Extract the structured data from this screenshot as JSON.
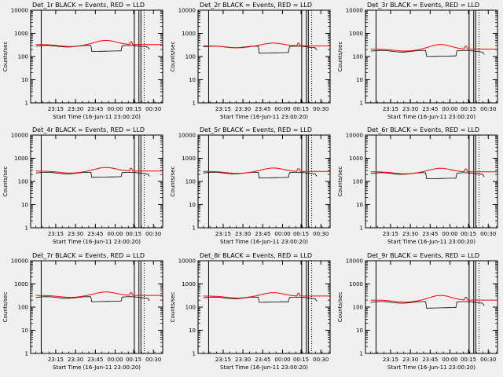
{
  "figure": {
    "background": "#f0f0f0",
    "axis_color": "#000000",
    "events_color": "#000000",
    "lld_color": "#ff0000"
  },
  "chart_data": [
    {
      "type": "line",
      "title": "Det_1r BLACK = Events, RED = LLD",
      "ylabel": "Counts/sec",
      "xlabel": "Start Time (16-Jun-11 23:00:20)",
      "xticks": [
        "23:15",
        "23:30",
        "23:45",
        "00:00",
        "00:15",
        "00:30"
      ],
      "yticks": [
        "1",
        "10",
        "100",
        "1000",
        "10000"
      ],
      "yscale": "log",
      "ylim": [
        1,
        10000
      ],
      "series": [
        {
          "name": "Events",
          "color": "#000000",
          "level": 280,
          "gap_level": 165
        },
        {
          "name": "LLD",
          "color": "#ff0000",
          "level": 330,
          "bump": 500
        }
      ]
    },
    {
      "type": "line",
      "title": "Det_2r BLACK = Events, RED = LLD",
      "ylabel": "Counts/sec",
      "xlabel": "Start Time (16-Jun-11 23:00:20)",
      "xticks": [
        "23:15",
        "23:30",
        "23:45",
        "00:00",
        "00:15",
        "00:30"
      ],
      "yticks": [
        "1",
        "10",
        "100",
        "1000",
        "10000"
      ],
      "yscale": "log",
      "ylim": [
        1,
        10000
      ],
      "series": [
        {
          "name": "Events",
          "color": "#000000",
          "level": 260,
          "gap_level": 140
        },
        {
          "name": "LLD",
          "color": "#ff0000",
          "level": 290,
          "bump": 380
        }
      ]
    },
    {
      "type": "line",
      "title": "Det_3r BLACK = Events, RED = LLD",
      "ylabel": "Counts/sec",
      "xlabel": "Start Time (16-Jun-11 23:00:20)",
      "xticks": [
        "23:15",
        "23:30",
        "23:45",
        "00:00",
        "00:15",
        "00:30"
      ],
      "yticks": [
        "1",
        "10",
        "100",
        "1000",
        "10000"
      ],
      "yscale": "log",
      "ylim": [
        1,
        10000
      ],
      "series": [
        {
          "name": "Events",
          "color": "#000000",
          "level": 170,
          "gap_level": 100
        },
        {
          "name": "LLD",
          "color": "#ff0000",
          "level": 210,
          "bump": 330
        }
      ]
    },
    {
      "type": "line",
      "title": "Det_4r BLACK = Events, RED = LLD",
      "ylabel": "Counts/sec",
      "xlabel": "Start Time (16-Jun-11 23:00:20)",
      "xticks": [
        "23:15",
        "23:30",
        "23:45",
        "00:00",
        "00:15",
        "00:30"
      ],
      "yticks": [
        "1",
        "10",
        "100",
        "1000",
        "10000"
      ],
      "yscale": "log",
      "ylim": [
        1,
        10000
      ],
      "series": [
        {
          "name": "Events",
          "color": "#000000",
          "level": 230,
          "gap_level": 150
        },
        {
          "name": "LLD",
          "color": "#ff0000",
          "level": 280,
          "bump": 400
        }
      ]
    },
    {
      "type": "line",
      "title": "Det_5r BLACK = Events, RED = LLD",
      "ylabel": "Counts/sec",
      "xlabel": "Start Time (16-Jun-11 23:00:20)",
      "xticks": [
        "23:15",
        "23:30",
        "23:45",
        "00:00",
        "00:15",
        "00:30"
      ],
      "yticks": [
        "1",
        "10",
        "100",
        "1000",
        "10000"
      ],
      "yscale": "log",
      "ylim": [
        1,
        10000
      ],
      "series": [
        {
          "name": "Events",
          "color": "#000000",
          "level": 230,
          "gap_level": 140
        },
        {
          "name": "LLD",
          "color": "#ff0000",
          "level": 270,
          "bump": 380
        }
      ]
    },
    {
      "type": "line",
      "title": "Det_6r BLACK = Events, RED = LLD",
      "ylabel": "Counts/sec",
      "xlabel": "Start Time (16-Jun-11 23:00:20)",
      "xticks": [
        "23:15",
        "23:30",
        "23:45",
        "00:00",
        "00:15",
        "00:30"
      ],
      "yticks": [
        "1",
        "10",
        "100",
        "1000",
        "10000"
      ],
      "yscale": "log",
      "ylim": [
        1,
        10000
      ],
      "series": [
        {
          "name": "Events",
          "color": "#000000",
          "level": 220,
          "gap_level": 130
        },
        {
          "name": "LLD",
          "color": "#ff0000",
          "level": 260,
          "bump": 370
        }
      ]
    },
    {
      "type": "line",
      "title": "Det_7r BLACK = Events, RED = LLD",
      "ylabel": "Counts/sec",
      "xlabel": "Start Time (16-Jun-11 23:00:20)",
      "xticks": [
        "23:15",
        "23:30",
        "23:45",
        "00:00",
        "00:15",
        "00:30"
      ],
      "yticks": [
        "1",
        "10",
        "100",
        "1000",
        "10000"
      ],
      "yscale": "log",
      "ylim": [
        1,
        10000
      ],
      "series": [
        {
          "name": "Events",
          "color": "#000000",
          "level": 260,
          "gap_level": 170
        },
        {
          "name": "LLD",
          "color": "#ff0000",
          "level": 320,
          "bump": 450
        }
      ]
    },
    {
      "type": "line",
      "title": "Det_8r BLACK = Events, RED = LLD",
      "ylabel": "Counts/sec",
      "xlabel": "Start Time (16-Jun-11 23:00:20)",
      "xticks": [
        "23:15",
        "23:30",
        "23:45",
        "00:00",
        "00:15",
        "00:30"
      ],
      "yticks": [
        "1",
        "10",
        "100",
        "1000",
        "10000"
      ],
      "yscale": "log",
      "ylim": [
        1,
        10000
      ],
      "series": [
        {
          "name": "Events",
          "color": "#000000",
          "level": 250,
          "gap_level": 160
        },
        {
          "name": "LLD",
          "color": "#ff0000",
          "level": 300,
          "bump": 420
        }
      ]
    },
    {
      "type": "line",
      "title": "Det_9r BLACK = Events, RED = LLD",
      "ylabel": "Counts/sec",
      "xlabel": "Start Time (16-Jun-11 23:00:20)",
      "xticks": [
        "23:15",
        "23:30",
        "23:45",
        "00:00",
        "00:15",
        "00:30"
      ],
      "yticks": [
        "1",
        "10",
        "100",
        "1000",
        "10000"
      ],
      "yscale": "log",
      "ylim": [
        1,
        10000
      ],
      "series": [
        {
          "name": "Events",
          "color": "#000000",
          "level": 160,
          "gap_level": 90
        },
        {
          "name": "LLD",
          "color": "#ff0000",
          "level": 200,
          "bump": 320
        }
      ]
    }
  ]
}
